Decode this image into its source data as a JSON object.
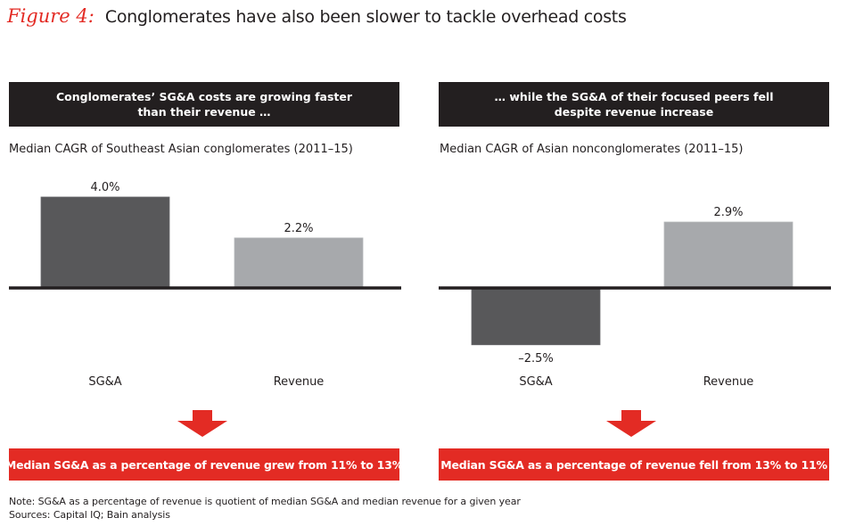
{
  "figure": {
    "label": "Figure 4:",
    "title": "Conglomerates have also been slower to tackle overhead costs"
  },
  "panels": [
    {
      "header_line1": "Conglomerates’ SG&A costs are growing faster",
      "header_line2": "than their revenue …",
      "subtitle": "Median CAGR of Southeast Asian conglomerates (2011–15)",
      "conclusion": "Median SG&A as a percentage of revenue grew from 11% to 13%"
    },
    {
      "header_line1": "… while the SG&A of their focused peers fell",
      "header_line2": "despite revenue increase",
      "subtitle": "Median CAGR of Asian nonconglomerates (2011–15)",
      "conclusion": "Median SG&A as a percentage of revenue fell from 13% to 11%"
    }
  ],
  "chart_data": [
    {
      "type": "bar",
      "title": "Median CAGR of Southeast Asian conglomerates (2011–15)",
      "categories": [
        "SG&A",
        "Revenue"
      ],
      "values": [
        4.0,
        2.2
      ],
      "value_labels": [
        "4.0%",
        "2.2%"
      ],
      "colors": [
        "#58585a",
        "#a7a9ac"
      ],
      "xlabel": "",
      "ylabel": "",
      "unit": "%",
      "grid": false
    },
    {
      "type": "bar",
      "title": "Median CAGR of Asian nonconglomerates (2011–15)",
      "categories": [
        "SG&A",
        "Revenue"
      ],
      "values": [
        -2.5,
        2.9
      ],
      "value_labels": [
        "–2.5%",
        "2.9%"
      ],
      "colors": [
        "#58585a",
        "#a7a9ac"
      ],
      "xlabel": "",
      "ylabel": "",
      "unit": "%",
      "grid": false
    }
  ],
  "colors": {
    "accent_red": "#e32b24",
    "header_dark": "#231f20",
    "bar_dark": "#58585a",
    "bar_light": "#a7a9ac"
  },
  "footer": {
    "note": "Note: SG&A as a percentage of revenue is quotient of median SG&A and median revenue for a given year",
    "sources": "Sources: Capital IQ; Bain analysis"
  }
}
